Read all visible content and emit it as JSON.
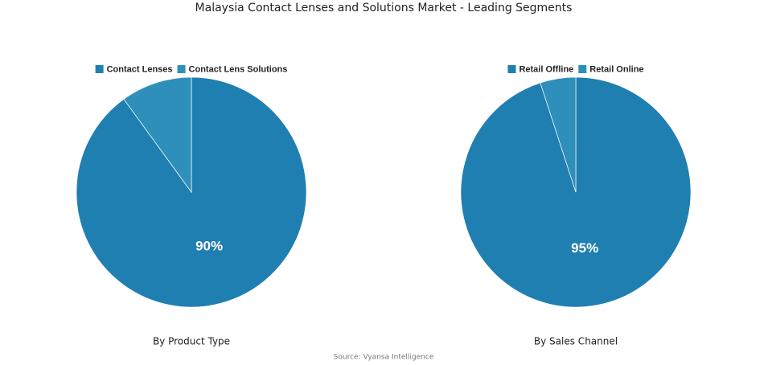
{
  "title": "Malaysia Contact Lenses and Solutions Market - Leading Segments",
  "source": "Source: Vyansa Intelligence",
  "chart_data": [
    {
      "type": "pie",
      "title": "By Product Type",
      "categories": [
        "Contact Lenses",
        "Contact Lens Solutions"
      ],
      "values": [
        90,
        10
      ],
      "value_labels": [
        "90%",
        null
      ],
      "colors": [
        "#1f7fb0",
        "#2e8fbb"
      ]
    },
    {
      "type": "pie",
      "title": "By Sales Channel",
      "categories": [
        "Retail Offline",
        "Retail Online"
      ],
      "values": [
        95,
        5
      ],
      "value_labels": [
        "95%",
        null
      ],
      "colors": [
        "#1f7fb0",
        "#2e8fbb"
      ]
    }
  ]
}
